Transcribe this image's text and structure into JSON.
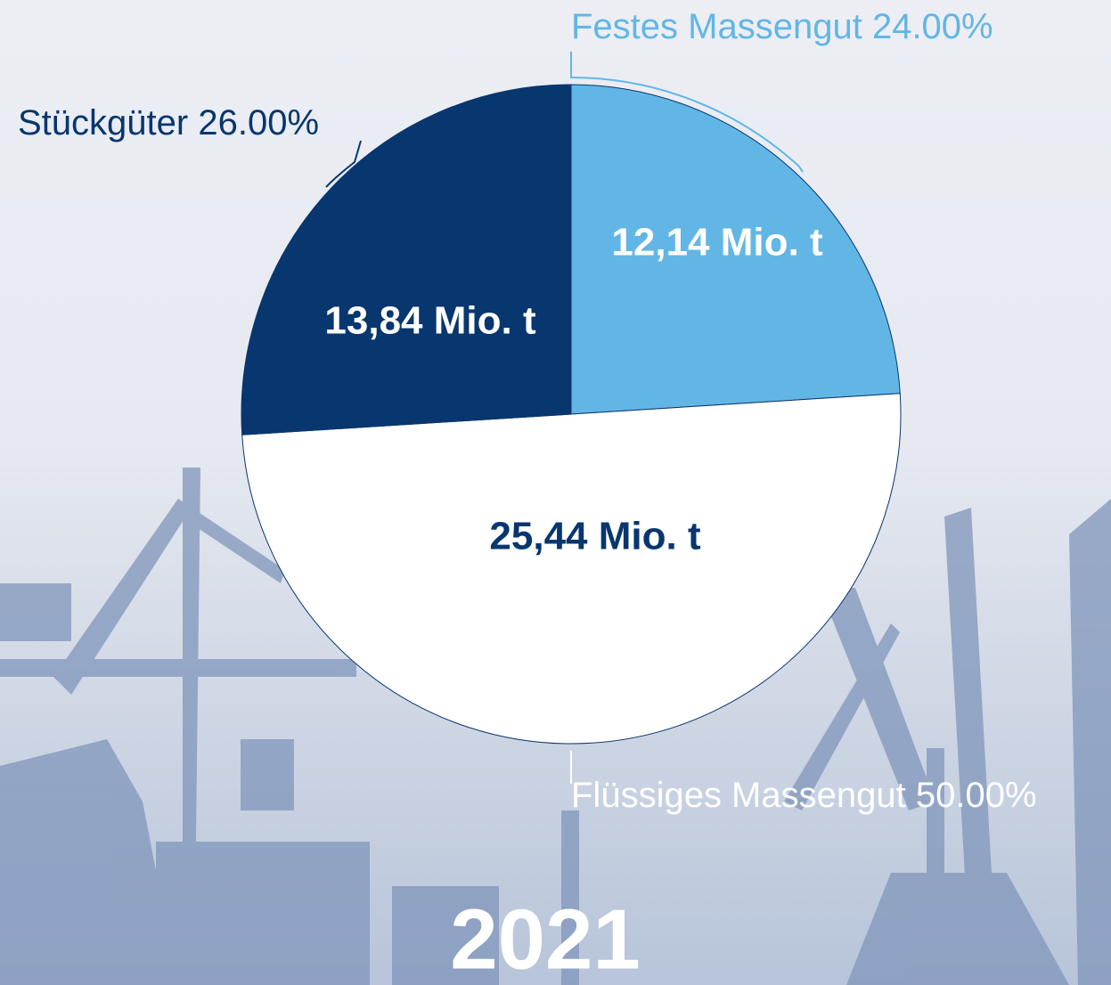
{
  "chart_data": {
    "type": "pie",
    "title": "2021",
    "categories": [
      "Festes Massengut",
      "Flüssiges Massengut",
      "Stückgüter"
    ],
    "values": [
      24,
      50,
      26
    ],
    "value_labels": [
      "24.00%",
      "50.00%",
      "26.00%"
    ],
    "amount_labels": [
      "12,14 Mio. t",
      "25,44 Mio. t",
      "13,84 Mio. t"
    ],
    "colors": [
      "#62b6e5",
      "#ffffff",
      "#08366e"
    ]
  }
}
